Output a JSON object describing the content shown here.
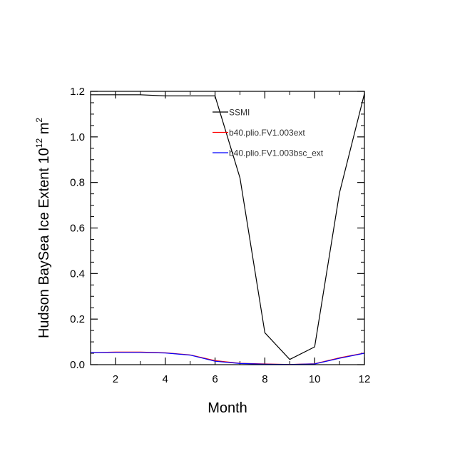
{
  "chart_data": {
    "type": "line",
    "xlabel": "Month",
    "ylabel_main": "Hudson BaySea Ice Extent 10",
    "ylabel_sup": "12",
    "ylabel_tail": " m",
    "ylabel_sup2": "2",
    "xlim": [
      1,
      12
    ],
    "ylim": [
      0,
      1.2
    ],
    "x_ticks": [
      2,
      4,
      6,
      8,
      10,
      12
    ],
    "y_ticks": [
      0.0,
      0.2,
      0.4,
      0.6,
      0.8,
      1.0,
      1.2
    ],
    "y_tick_labels": [
      "0.0",
      "0.2",
      "0.4",
      "0.6",
      "0.8",
      "1.0",
      "1.2"
    ],
    "x": [
      1,
      2,
      3,
      4,
      5,
      6,
      7,
      8,
      9,
      10,
      11,
      12
    ],
    "legend_position": "top-right",
    "series": [
      {
        "name": "SSMI",
        "color": "#000000",
        "values": [
          1.185,
          1.185,
          1.185,
          1.18,
          1.18,
          1.18,
          0.82,
          0.14,
          0.023,
          0.078,
          0.755,
          1.19
        ]
      },
      {
        "name": "b40.plio.FV1.003ext",
        "color": "#ff0000",
        "values": [
          0.053,
          0.055,
          0.055,
          0.052,
          0.043,
          0.018,
          0.006,
          0.003,
          0.001,
          0.004,
          0.03,
          0.051
        ]
      },
      {
        "name": "b40.plio.FV1.003bsc_ext",
        "color": "#0000ff",
        "values": [
          0.053,
          0.054,
          0.054,
          0.051,
          0.042,
          0.015,
          0.005,
          0.002,
          0.001,
          0.003,
          0.028,
          0.05
        ]
      }
    ]
  }
}
